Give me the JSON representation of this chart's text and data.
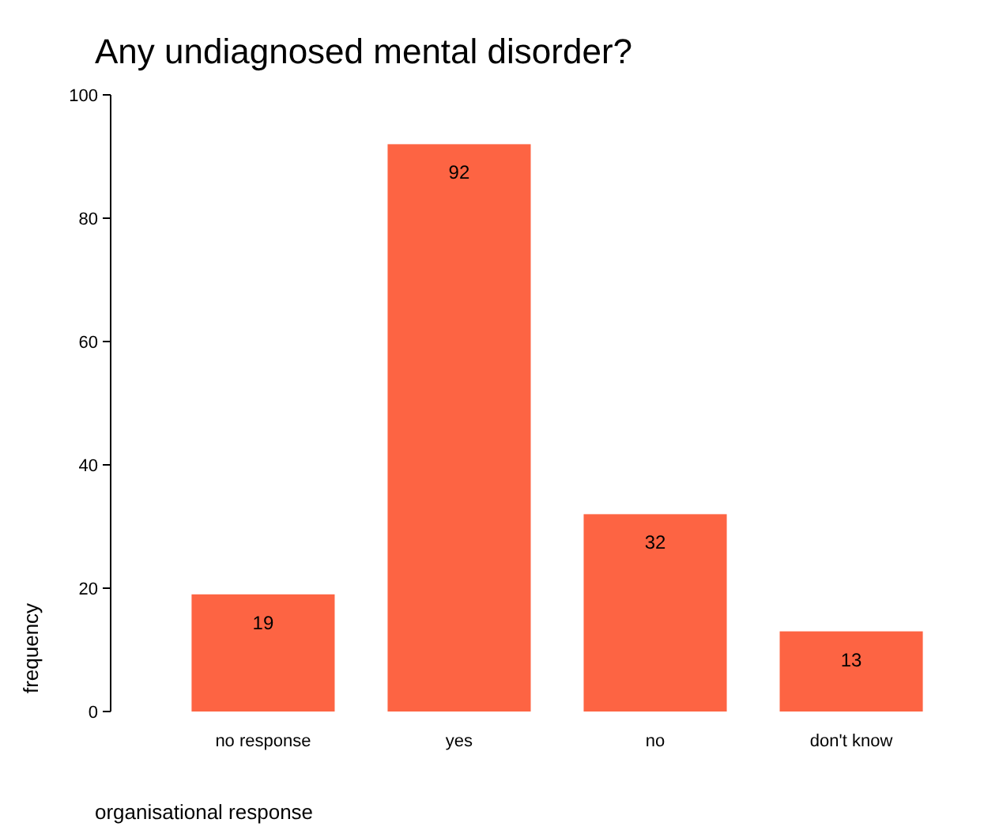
{
  "chart_data": {
    "type": "bar",
    "title": "Any undiagnosed mental disorder?",
    "xlabel": "organisational response",
    "ylabel": "frequency",
    "categories": [
      "no response",
      "yes",
      "no",
      "don't know"
    ],
    "values": [
      19,
      92,
      32,
      13
    ],
    "color": "#fd6443",
    "ylim": [
      0,
      100
    ],
    "yticks": [
      0,
      20,
      40,
      60,
      80,
      100
    ],
    "data_labels": true,
    "grid": false
  }
}
